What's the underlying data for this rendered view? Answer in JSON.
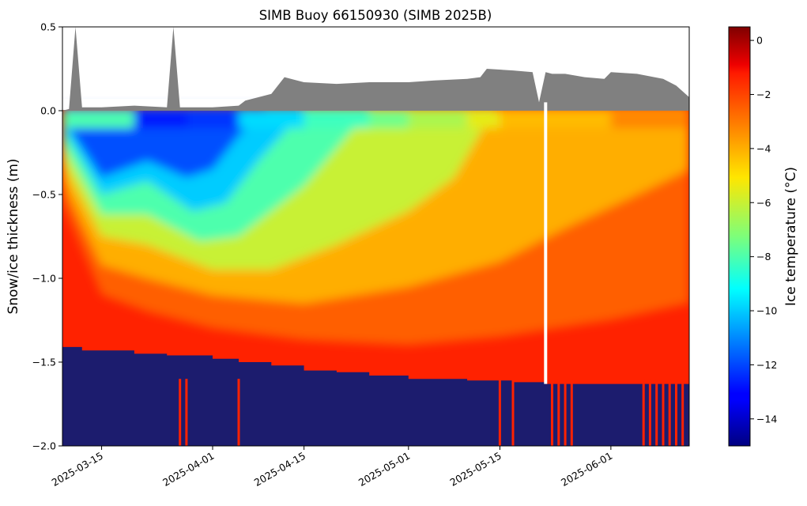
{
  "chart_data": {
    "type": "heatmap",
    "title": "SIMB Buoy 66150930 (SIMB 2025B)",
    "ylabel": "Snow/ice thickness (m)",
    "xlabel": "",
    "ylim": [
      -2.0,
      0.5
    ],
    "xlim": [
      "2025-03-09",
      "2025-06-13"
    ],
    "x_ticks": [
      "2025-03-15",
      "2025-04-01",
      "2025-04-15",
      "2025-05-01",
      "2025-05-15",
      "2025-06-01"
    ],
    "y_ticks": [
      "0.5",
      "0.0",
      "−0.5",
      "−1.0",
      "−1.5",
      "−2.0"
    ],
    "y_tick_values": [
      0.5,
      0.0,
      -0.5,
      -1.0,
      -1.5,
      -2.0
    ],
    "colorbar": {
      "label": "Ice temperature (°C)",
      "colormap": "jet",
      "range": [
        -15,
        0.5
      ],
      "ticks": [
        "0",
        "−2",
        "−4",
        "−6",
        "−8",
        "−10",
        "−12",
        "−14"
      ],
      "tick_values": [
        0,
        -2,
        -4,
        -6,
        -8,
        -10,
        -12,
        -14
      ]
    },
    "snow_surface": {
      "color": "#808080",
      "dates": [
        "2025-03-09",
        "2025-03-10",
        "2025-03-11",
        "2025-03-12",
        "2025-03-15",
        "2025-03-20",
        "2025-03-25",
        "2025-03-26",
        "2025-03-27",
        "2025-04-01",
        "2025-04-05",
        "2025-04-06",
        "2025-04-08",
        "2025-04-10",
        "2025-04-12",
        "2025-04-15",
        "2025-04-20",
        "2025-04-25",
        "2025-05-01",
        "2025-05-05",
        "2025-05-10",
        "2025-05-12",
        "2025-05-13",
        "2025-05-17",
        "2025-05-20",
        "2025-05-21",
        "2025-05-22",
        "2025-05-23",
        "2025-05-25",
        "2025-05-28",
        "2025-05-31",
        "2025-06-01",
        "2025-06-05",
        "2025-06-09",
        "2025-06-11",
        "2025-06-13"
      ],
      "top_m": [
        0.0,
        0.01,
        0.5,
        0.02,
        0.02,
        0.03,
        0.02,
        0.5,
        0.02,
        0.02,
        0.03,
        0.06,
        0.08,
        0.1,
        0.2,
        0.17,
        0.16,
        0.17,
        0.17,
        0.18,
        0.19,
        0.2,
        0.25,
        0.24,
        0.23,
        0.05,
        0.23,
        0.22,
        0.22,
        0.2,
        0.19,
        0.23,
        0.22,
        0.19,
        0.15,
        0.08
      ]
    },
    "ice_bottom": {
      "color": "#1c1c6e",
      "dates": [
        "2025-03-09",
        "2025-03-12",
        "2025-03-15",
        "2025-03-20",
        "2025-03-25",
        "2025-04-01",
        "2025-04-05",
        "2025-04-10",
        "2025-04-15",
        "2025-04-20",
        "2025-04-25",
        "2025-05-01",
        "2025-05-10",
        "2025-05-17",
        "2025-05-22",
        "2025-06-13"
      ],
      "depth_m": [
        -1.41,
        -1.43,
        -1.43,
        -1.45,
        -1.46,
        -1.48,
        -1.5,
        -1.52,
        -1.55,
        -1.56,
        -1.58,
        -1.6,
        -1.61,
        -1.62,
        -1.63,
        -1.63
      ]
    },
    "isotherms": [
      {
        "temp_c": -12,
        "dates": [
          "2025-03-09",
          "2025-03-15",
          "2025-03-22",
          "2025-03-28",
          "2025-04-01",
          "2025-04-05",
          "2025-04-09"
        ],
        "depth_m": [
          -0.05,
          -0.4,
          -0.3,
          -0.4,
          -0.35,
          -0.15,
          0.0
        ]
      },
      {
        "temp_c": -10,
        "dates": [
          "2025-03-09",
          "2025-03-15",
          "2025-03-22",
          "2025-03-29",
          "2025-04-03",
          "2025-04-08",
          "2025-04-15"
        ],
        "depth_m": [
          -0.1,
          -0.5,
          -0.42,
          -0.6,
          -0.55,
          -0.3,
          0.0
        ]
      },
      {
        "temp_c": -8,
        "dates": [
          "2025-03-09",
          "2025-03-15",
          "2025-03-22",
          "2025-03-30",
          "2025-04-05",
          "2025-04-15",
          "2025-04-25"
        ],
        "depth_m": [
          -0.2,
          -0.62,
          -0.62,
          -0.78,
          -0.75,
          -0.45,
          0.0
        ]
      },
      {
        "temp_c": -6,
        "dates": [
          "2025-03-09",
          "2025-03-15",
          "2025-03-22",
          "2025-04-01",
          "2025-04-10",
          "2025-04-20",
          "2025-05-01",
          "2025-05-08",
          "2025-05-14"
        ],
        "depth_m": [
          -0.3,
          -0.75,
          -0.8,
          -0.95,
          -0.95,
          -0.8,
          -0.6,
          -0.4,
          0.0
        ]
      },
      {
        "temp_c": -4,
        "dates": [
          "2025-03-09",
          "2025-03-15",
          "2025-03-22",
          "2025-04-01",
          "2025-04-15",
          "2025-05-01",
          "2025-05-15",
          "2025-05-25",
          "2025-06-05",
          "2025-06-13"
        ],
        "depth_m": [
          -0.42,
          -0.92,
          -1.0,
          -1.1,
          -1.15,
          -1.05,
          -0.9,
          -0.7,
          -0.5,
          -0.35
        ]
      },
      {
        "temp_c": -2.5,
        "dates": [
          "2025-03-09",
          "2025-03-15",
          "2025-03-22",
          "2025-04-01",
          "2025-04-15",
          "2025-05-01",
          "2025-05-15",
          "2025-06-01",
          "2025-06-13"
        ],
        "depth_m": [
          -0.55,
          -1.1,
          -1.2,
          -1.3,
          -1.37,
          -1.4,
          -1.35,
          -1.25,
          -1.15
        ]
      }
    ],
    "surface_temp_c": [
      {
        "date": "2025-03-09",
        "value": -4
      },
      {
        "date": "2025-03-20",
        "value": -12
      },
      {
        "date": "2025-03-28",
        "value": -14
      },
      {
        "date": "2025-04-05",
        "value": -11
      },
      {
        "date": "2025-04-15",
        "value": -8.5
      },
      {
        "date": "2025-04-25",
        "value": -8
      },
      {
        "date": "2025-05-01",
        "value": -7
      },
      {
        "date": "2025-05-10",
        "value": -6
      },
      {
        "date": "2025-05-15",
        "value": -5
      },
      {
        "date": "2025-06-01",
        "value": -3.5
      },
      {
        "date": "2025-06-13",
        "value": -3
      }
    ],
    "data_gap": {
      "date": "2025-05-22",
      "color": "#ffffff"
    },
    "bottom_spikes": {
      "color": "#ff2200",
      "dates": [
        "2025-03-27",
        "2025-03-28",
        "2025-04-05",
        "2025-05-15",
        "2025-05-17",
        "2025-05-23",
        "2025-05-24",
        "2025-05-25",
        "2025-05-26",
        "2025-06-06",
        "2025-06-07",
        "2025-06-08",
        "2025-06-09",
        "2025-06-10",
        "2025-06-11",
        "2025-06-12"
      ]
    }
  }
}
